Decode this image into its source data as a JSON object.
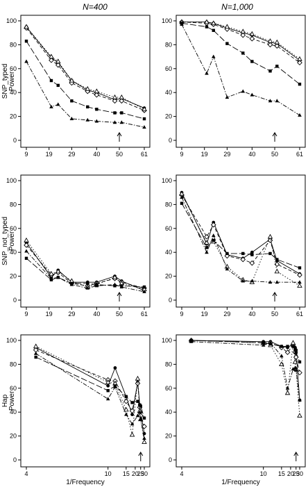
{
  "header": {
    "col1_title": "N=400",
    "col2_title": "N=1,000"
  },
  "chart_data": [
    {
      "id": "snp-typed-400",
      "type": "line",
      "ylabel_line1": "SNP_typed",
      "ylabel_line2": "Power",
      "xlabel": "",
      "x_ticks": [
        "9",
        "19",
        "29",
        "40",
        "50",
        "61"
      ],
      "x_tick_values": [
        9,
        19,
        29,
        40,
        50,
        61
      ],
      "xlim": [
        9,
        61
      ],
      "ylim": [
        0,
        100
      ],
      "y_ticks": [
        "0",
        "20",
        "40",
        "60",
        "80",
        "100"
      ],
      "arrow_x": 50,
      "scale": "linear",
      "x": [
        9,
        20,
        23,
        29,
        36,
        40,
        48,
        51,
        61
      ],
      "series": [
        {
          "style": "solid",
          "marker": "circle",
          "values": [
            95,
            69,
            65,
            50,
            42,
            40,
            34,
            35,
            27
          ]
        },
        {
          "style": "dashed",
          "marker": "diamond",
          "values": [
            94,
            67,
            63,
            48,
            41,
            38,
            33,
            33,
            25
          ]
        },
        {
          "style": "dotted",
          "marker": "triangle-open",
          "values": [
            95,
            70,
            66,
            50,
            43,
            41,
            36,
            36,
            26
          ]
        },
        {
          "style": "longdash",
          "marker": "square",
          "values": [
            83,
            50,
            46,
            33,
            28,
            26,
            23,
            23,
            18
          ]
        },
        {
          "style": "dotdash",
          "marker": "triangle",
          "values": [
            66,
            28,
            30,
            18,
            17,
            16,
            15,
            15,
            11
          ]
        }
      ]
    },
    {
      "id": "snp-typed-1000",
      "type": "line",
      "ylabel_line1": "",
      "ylabel_line2": "",
      "xlabel": "",
      "x_ticks": [
        "9",
        "19",
        "29",
        "40",
        "50",
        "61"
      ],
      "x_tick_values": [
        9,
        19,
        29,
        40,
        50,
        61
      ],
      "xlim": [
        9,
        61
      ],
      "ylim": [
        0,
        100
      ],
      "y_ticks": [
        "0",
        "20",
        "40",
        "60",
        "80",
        "100"
      ],
      "arrow_x": 50,
      "scale": "linear",
      "x": [
        9,
        20,
        23,
        29,
        36,
        40,
        48,
        51,
        61
      ],
      "series": [
        {
          "style": "solid",
          "marker": "circle",
          "values": [
            99,
            99,
            98,
            94,
            90,
            88,
            82,
            81,
            67
          ]
        },
        {
          "style": "dashed",
          "marker": "diamond",
          "values": [
            99,
            98,
            97,
            93,
            88,
            85,
            80,
            79,
            65
          ]
        },
        {
          "style": "dotted",
          "marker": "triangle-open",
          "values": [
            99,
            99,
            98,
            95,
            91,
            89,
            83,
            82,
            68
          ]
        },
        {
          "style": "longdash",
          "marker": "square",
          "values": [
            98,
            95,
            92,
            81,
            73,
            66,
            58,
            62,
            47
          ]
        },
        {
          "style": "dotdash",
          "marker": "triangle",
          "values": [
            97,
            56,
            70,
            36,
            41,
            38,
            33,
            33,
            21
          ]
        }
      ]
    },
    {
      "id": "snp-not-typed-400",
      "type": "line",
      "ylabel_line1": "SNP_not_typed",
      "ylabel_line2": "Power",
      "xlabel": "",
      "x_ticks": [
        "9",
        "19",
        "29",
        "40",
        "50",
        "61"
      ],
      "x_tick_values": [
        9,
        19,
        29,
        40,
        50,
        61
      ],
      "xlim": [
        9,
        61
      ],
      "ylim": [
        0,
        100
      ],
      "y_ticks": [
        "0",
        "20",
        "40",
        "60",
        "80",
        "100"
      ],
      "arrow_x": 50,
      "scale": "linear",
      "x": [
        9,
        20,
        23,
        29,
        36,
        40,
        48,
        51,
        61
      ],
      "series": [
        {
          "style": "solid",
          "marker": "circle",
          "values": [
            48,
            19,
            25,
            15,
            15,
            15,
            20,
            16,
            8
          ]
        },
        {
          "style": "dashed",
          "marker": "diamond",
          "values": [
            46,
            21,
            23,
            14,
            12,
            14,
            18,
            15,
            10
          ]
        },
        {
          "style": "dotted",
          "marker": "triangle-open",
          "values": [
            50,
            22,
            24,
            16,
            11,
            13,
            19,
            14,
            9
          ]
        },
        {
          "style": "longdash",
          "marker": "square",
          "values": [
            35,
            17,
            19,
            14,
            14,
            13,
            12,
            12,
            11
          ]
        },
        {
          "style": "dotdash",
          "marker": "triangle",
          "values": [
            41,
            18,
            19,
            13,
            10,
            12,
            13,
            11,
            7
          ]
        }
      ]
    },
    {
      "id": "snp-not-typed-1000",
      "type": "line",
      "ylabel_line1": "",
      "ylabel_line2": "",
      "xlabel": "",
      "x_ticks": [
        "9",
        "19",
        "29",
        "40",
        "50",
        "61"
      ],
      "x_tick_values": [
        9,
        19,
        29,
        40,
        50,
        61
      ],
      "xlim": [
        9,
        61
      ],
      "ylim": [
        0,
        100
      ],
      "y_ticks": [
        "0",
        "20",
        "40",
        "60",
        "80",
        "100"
      ],
      "arrow_x": 50,
      "scale": "linear",
      "x": [
        9,
        20,
        23,
        29,
        36,
        40,
        48,
        51,
        61
      ],
      "series": [
        {
          "style": "solid",
          "marker": "circle",
          "values": [
            90,
            47,
            65,
            38,
            35,
            40,
            51,
            33,
            22
          ]
        },
        {
          "style": "dashed",
          "marker": "diamond",
          "values": [
            88,
            53,
            63,
            37,
            34,
            31,
            50,
            30,
            21
          ]
        },
        {
          "style": "dotted",
          "marker": "triangle-open",
          "values": [
            89,
            48,
            49,
            28,
            17,
            15,
            53,
            24,
            12
          ]
        },
        {
          "style": "longdash",
          "marker": "square",
          "values": [
            81,
            44,
            50,
            39,
            39,
            38,
            39,
            34,
            27
          ]
        },
        {
          "style": "dotdash",
          "marker": "triangle",
          "values": [
            86,
            40,
            54,
            26,
            16,
            16,
            15,
            15,
            15
          ]
        }
      ]
    },
    {
      "id": "hap-400",
      "type": "line",
      "ylabel_line1": "Hap",
      "ylabel_line2": "Power",
      "xlabel": "1/Frequency",
      "x_ticks": [
        "4",
        "10",
        "15",
        "20",
        "25",
        "30"
      ],
      "x_tick_values": [
        4,
        10,
        15,
        20,
        25,
        30
      ],
      "xlim": [
        4,
        30
      ],
      "ylim": [
        0,
        100
      ],
      "y_ticks": [
        "0",
        "20",
        "40",
        "60",
        "80",
        "100"
      ],
      "arrow_x": 25,
      "scale": "reciprocal",
      "x": [
        4.3,
        10,
        11.5,
        15,
        18,
        22,
        24,
        25,
        30
      ],
      "series": [
        {
          "style": "solid",
          "marker": "circle",
          "values": [
            94,
            62,
            77,
            53,
            38,
            65,
            46,
            40,
            22
          ]
        },
        {
          "style": "dashed",
          "marker": "diamond",
          "values": [
            92,
            67,
            66,
            49,
            41,
            64,
            44,
            37,
            28
          ]
        },
        {
          "style": "dotted",
          "marker": "triangle-open",
          "values": [
            95,
            65,
            64,
            42,
            21,
            68,
            41,
            34,
            15
          ]
        },
        {
          "style": "longdash",
          "marker": "square",
          "values": [
            86,
            58,
            62,
            53,
            48,
            49,
            46,
            45,
            35
          ]
        },
        {
          "style": "dotdash",
          "marker": "triangle",
          "values": [
            89,
            51,
            61,
            38,
            30,
            37,
            40,
            34,
            18
          ]
        }
      ]
    },
    {
      "id": "hap-1000",
      "type": "line",
      "ylabel_line1": "",
      "ylabel_line2": "",
      "xlabel": "1/Frequency",
      "x_ticks": [
        "4",
        "10",
        "15",
        "20",
        "25",
        "30"
      ],
      "x_tick_values": [
        4,
        10,
        15,
        20,
        25,
        30
      ],
      "xlim": [
        4,
        30
      ],
      "ylim": [
        0,
        100
      ],
      "y_ticks": [
        "0",
        "20",
        "40",
        "60",
        "80",
        "100"
      ],
      "arrow_x": 25,
      "scale": "reciprocal",
      "x": [
        4.3,
        10,
        11.5,
        15,
        18,
        22,
        24,
        25,
        30
      ],
      "series": [
        {
          "style": "solid",
          "marker": "circle",
          "values": [
            100,
            99,
            99,
            95,
            94,
            97,
            94,
            92,
            50
          ]
        },
        {
          "style": "dashed",
          "marker": "diamond",
          "values": [
            100,
            98,
            98,
            94,
            90,
            96,
            90,
            86,
            73
          ]
        },
        {
          "style": "dotted",
          "marker": "triangle-open",
          "values": [
            100,
            98,
            96,
            80,
            56,
            98,
            82,
            76,
            37
          ]
        },
        {
          "style": "longdash",
          "marker": "square",
          "values": [
            100,
            98,
            97,
            95,
            95,
            95,
            93,
            90,
            82
          ]
        },
        {
          "style": "dotdash",
          "marker": "triangle",
          "values": [
            99,
            96,
            98,
            87,
            60,
            76,
            77,
            75,
            50
          ]
        }
      ]
    }
  ]
}
